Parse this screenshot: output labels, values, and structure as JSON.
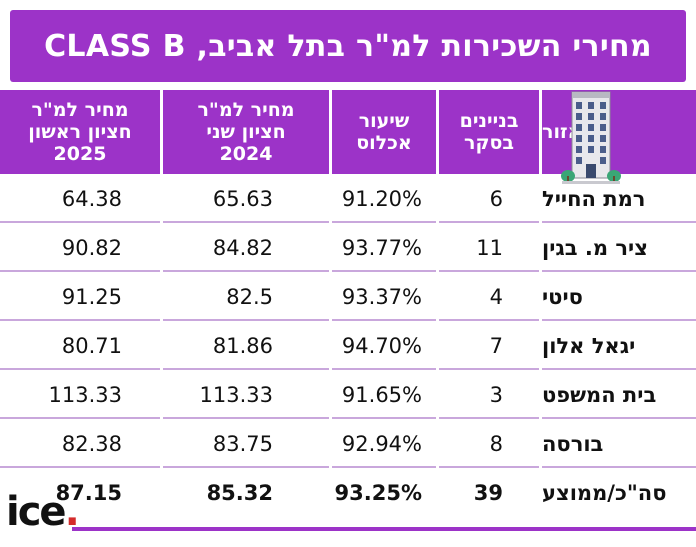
{
  "title": "מחירי השכירות למ\"ר בתל אביב, CLASS B",
  "headers": {
    "area": "אזור",
    "buildings": "בניינים\nבסקר",
    "occupancy": "שיעור\nאכלוס",
    "price_2024": "מחיר למ\"ר\nחציון שני\n2024",
    "price_2025": "מחיר למ\"ר\nחציון ראשון\n2025"
  },
  "rows": [
    {
      "area": "רמת החייל",
      "buildings": "6",
      "occupancy": "91.20%",
      "price_2024": "65.63",
      "price_2025": "64.38"
    },
    {
      "area": "ציר מ. בגין",
      "buildings": "11",
      "occupancy": "93.77%",
      "price_2024": "84.82",
      "price_2025": "90.82"
    },
    {
      "area": "סיטי",
      "buildings": "4",
      "occupancy": "93.37%",
      "price_2024": "82.5",
      "price_2025": "91.25"
    },
    {
      "area": "יגאל אלון",
      "buildings": "7",
      "occupancy": "94.70%",
      "price_2024": "81.86",
      "price_2025": "80.71"
    },
    {
      "area": "בית המשפט",
      "buildings": "3",
      "occupancy": "91.65%",
      "price_2024": "113.33",
      "price_2025": "113.33"
    },
    {
      "area": "בורסה",
      "buildings": "8",
      "occupancy": "92.94%",
      "price_2024": "83.75",
      "price_2025": "82.38"
    }
  ],
  "total": {
    "area": "סה\"כ/ממוצע",
    "buildings": "39",
    "occupancy": "93.25%",
    "price_2024": "85.32",
    "price_2025": "87.15"
  },
  "logo": {
    "text": "ice",
    "dot": "."
  },
  "colors": {
    "accent": "#9c33c8",
    "separator": "#c9a7dc",
    "logo_dot": "#d42b2b"
  },
  "icons": {
    "building": "office-building-icon"
  }
}
